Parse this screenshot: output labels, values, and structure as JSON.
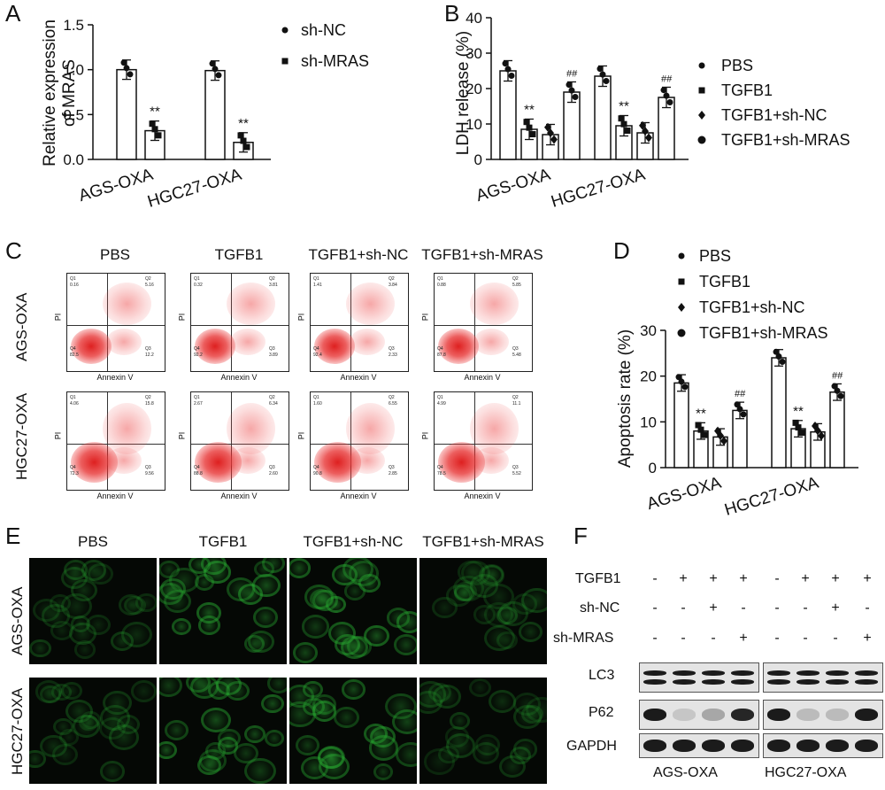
{
  "panels": {
    "A": "A",
    "B": "B",
    "C": "C",
    "D": "D",
    "E": "E",
    "F": "F"
  },
  "chart_data": [
    {
      "id": "A",
      "type": "bar",
      "ylabel_line1": "Relative expression",
      "ylabel_line2": "of MRAS",
      "ylim": [
        0,
        1.5
      ],
      "yticks": [
        "0.0",
        "0.5",
        "1.0",
        "1.5"
      ],
      "categories": [
        "AGS-OXA",
        "HGC27-OXA"
      ],
      "series": [
        {
          "name": "sh-NC",
          "values": [
            1.0,
            0.99
          ]
        },
        {
          "name": "sh-MRAS",
          "values": [
            0.32,
            0.19
          ]
        }
      ],
      "annotations": [
        "**",
        "**"
      ],
      "legend": [
        "sh-NC",
        "sh-MRAS"
      ]
    },
    {
      "id": "B",
      "type": "bar",
      "ylabel": "LDH release (%)",
      "ylim": [
        0,
        40
      ],
      "yticks": [
        "0",
        "10",
        "20",
        "30",
        "40"
      ],
      "categories": [
        "AGS-OXA",
        "HGC27-OXA"
      ],
      "series": [
        {
          "name": "PBS",
          "values": [
            25,
            23.5
          ]
        },
        {
          "name": "TGFB1",
          "values": [
            8.5,
            9.5
          ]
        },
        {
          "name": "TGFB1+sh-NC",
          "values": [
            7,
            7.5
          ]
        },
        {
          "name": "TGFB1+sh-MRAS",
          "values": [
            19,
            17.5
          ]
        }
      ],
      "annotations": [
        "**",
        "##",
        "**",
        "##"
      ],
      "legend": [
        "PBS",
        "TGFB1",
        "TGFB1+sh-NC",
        "TGFB1+sh-MRAS"
      ]
    },
    {
      "id": "D",
      "type": "bar",
      "ylabel": "Apoptosis rate (%)",
      "ylim": [
        0,
        30
      ],
      "yticks": [
        "0",
        "10",
        "20",
        "30"
      ],
      "categories": [
        "AGS-OXA",
        "HGC27-OXA"
      ],
      "series": [
        {
          "name": "PBS",
          "values": [
            18.5,
            24
          ]
        },
        {
          "name": "TGFB1",
          "values": [
            8,
            8.5
          ]
        },
        {
          "name": "TGFB1+sh-NC",
          "values": [
            6.7,
            7.8
          ]
        },
        {
          "name": "TGFB1+sh-MRAS",
          "values": [
            12.5,
            16.5
          ]
        }
      ],
      "annotations": [
        "**",
        "##",
        "**",
        "##"
      ],
      "legend": [
        "PBS",
        "TGFB1",
        "TGFB1+sh-NC",
        "TGFB1+sh-MRAS"
      ]
    }
  ],
  "flow": {
    "conditions": [
      "PBS",
      "TGFB1",
      "TGFB1+sh-NC",
      "TGFB1+sh-MRAS"
    ],
    "rows": [
      "AGS-OXA",
      "HGC27-OXA"
    ],
    "xlabel": "Annexin V",
    "ylabel": "PI",
    "quadrants": [
      [
        [
          "Q1 0.16",
          "Q2 5.16",
          "Q4 82.5",
          "Q3 12.2"
        ],
        [
          "Q1 0.32",
          "Q2 3.81",
          "Q4 92.2",
          "Q3 3.89"
        ],
        [
          "Q1 1.41",
          "Q2 3.84",
          "Q4 92.4",
          "Q3 2.33"
        ],
        [
          "Q1 0.88",
          "Q2 5.85",
          "Q4 87.8",
          "Q3 5.48"
        ]
      ],
      [
        [
          "Q1 4.06",
          "Q2 15.8",
          "Q4 72.3",
          "Q3 9.56"
        ],
        [
          "Q1 2.67",
          "Q2 6.34",
          "Q4 88.8",
          "Q3 2.60"
        ],
        [
          "Q1 1.60",
          "Q2 6.55",
          "Q4 90.8",
          "Q3 2.85"
        ],
        [
          "Q1 4.99",
          "Q2 11.1",
          "Q4 78.5",
          "Q3 5.52"
        ]
      ]
    ]
  },
  "fluorescence": {
    "conditions": [
      "PBS",
      "TGFB1",
      "TGFB1+sh-NC",
      "TGFB1+sh-MRAS"
    ],
    "rows": [
      "AGS-OXA",
      "HGC27-OXA"
    ]
  },
  "western": {
    "row_labels": [
      "TGFB1",
      "sh-NC",
      "sh-MRAS"
    ],
    "signs": [
      [
        "-",
        "+",
        "+",
        "+",
        "-",
        "+",
        "+",
        "+"
      ],
      [
        "-",
        "-",
        "+",
        "-",
        "-",
        "-",
        "+",
        "-"
      ],
      [
        "-",
        "-",
        "-",
        "+",
        "-",
        "-",
        "-",
        "+"
      ]
    ],
    "proteins": [
      "LC3",
      "P62",
      "GAPDH"
    ],
    "groups": [
      "AGS-OXA",
      "HGC27-OXA"
    ]
  }
}
